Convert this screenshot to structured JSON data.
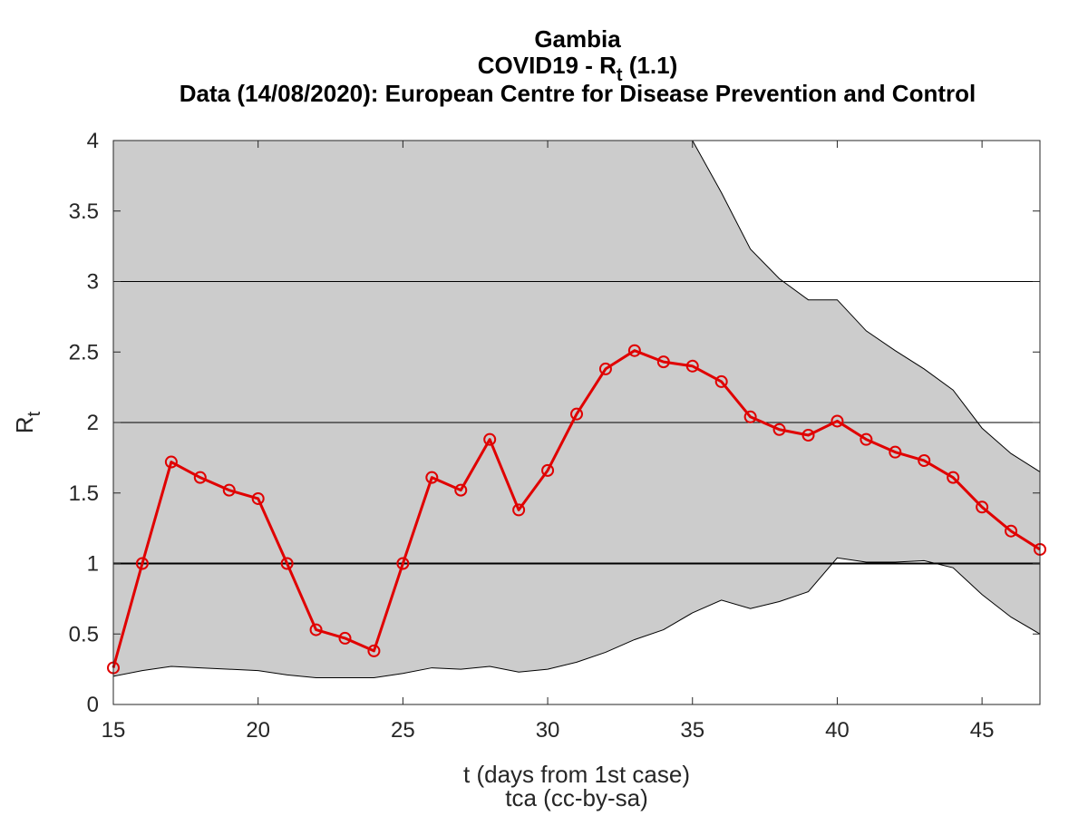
{
  "chart_data": {
    "type": "line",
    "title_lines": {
      "country": "Gambia",
      "metric_prefix": "COVID19 - R",
      "metric_sub": "t",
      "metric_suffix": " (1.1)",
      "source": "Data (14/08/2020): European Centre for Disease Prevention and Control"
    },
    "xlabel": "t (days from 1st case)",
    "credit": "tca (cc-by-sa)",
    "ylabel_main": "R",
    "ylabel_sub": "t",
    "xlim": [
      15,
      47
    ],
    "ylim": [
      0,
      4
    ],
    "xticks": [
      15,
      20,
      25,
      30,
      35,
      40,
      45
    ],
    "yticks": [
      0,
      0.5,
      1,
      1.5,
      2,
      2.5,
      3,
      3.5,
      4
    ],
    "grid_lines_y": [
      2,
      3
    ],
    "reference_line_y": 1,
    "series": [
      {
        "color": "#e00000",
        "marker": "circle",
        "x": [
          15,
          16,
          17,
          18,
          19,
          20,
          21,
          22,
          23,
          24,
          25,
          26,
          27,
          28,
          29,
          30,
          31,
          32,
          33,
          34,
          35,
          36,
          37,
          38,
          39,
          40,
          41,
          42,
          43,
          44,
          45,
          46,
          47
        ],
        "y": [
          0.26,
          1.0,
          1.72,
          1.61,
          1.52,
          1.46,
          1.0,
          0.53,
          0.47,
          0.38,
          1.0,
          1.61,
          1.52,
          1.88,
          1.38,
          1.66,
          2.06,
          2.38,
          2.51,
          2.43,
          2.4,
          2.29,
          2.04,
          1.95,
          1.91,
          2.01,
          1.88,
          1.79,
          1.73,
          1.61,
          1.4,
          1.23,
          1.1
        ]
      }
    ],
    "confidence_band": {
      "color": "#cccccc",
      "x": [
        15,
        16,
        17,
        18,
        19,
        20,
        21,
        22,
        23,
        24,
        25,
        26,
        27,
        28,
        29,
        30,
        31,
        32,
        33,
        34,
        35,
        36,
        37,
        38,
        39,
        40,
        41,
        42,
        43,
        44,
        45,
        46,
        47
      ],
      "lower": [
        0.2,
        0.24,
        0.27,
        0.26,
        0.25,
        0.24,
        0.21,
        0.19,
        0.19,
        0.19,
        0.22,
        0.26,
        0.25,
        0.27,
        0.23,
        0.25,
        0.3,
        0.37,
        0.46,
        0.53,
        0.65,
        0.74,
        0.68,
        0.73,
        0.8,
        1.04,
        1.01,
        1.01,
        1.02,
        0.97,
        0.78,
        0.62,
        0.5
      ],
      "upper": [
        4.0,
        4.0,
        4.0,
        4.0,
        4.0,
        4.0,
        4.0,
        4.0,
        4.0,
        4.0,
        4.0,
        4.0,
        4.0,
        4.0,
        4.0,
        4.0,
        4.0,
        4.0,
        4.0,
        4.0,
        4.0,
        3.63,
        3.23,
        3.02,
        2.87,
        2.87,
        2.65,
        2.51,
        2.38,
        2.23,
        1.96,
        1.78,
        1.65
      ]
    }
  }
}
